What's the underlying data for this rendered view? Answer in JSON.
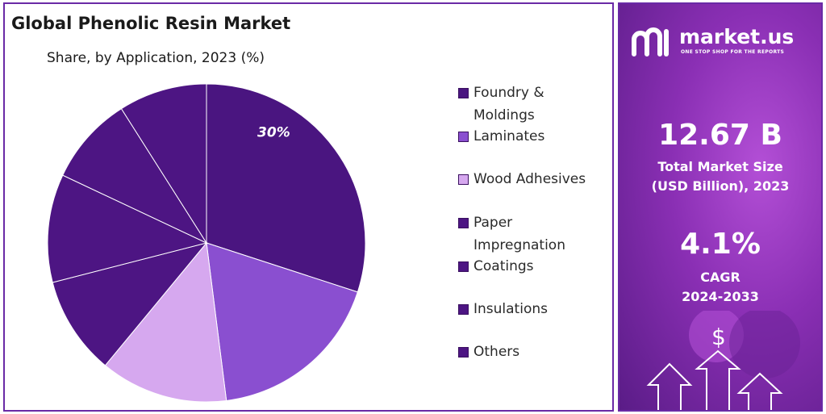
{
  "chart_data": {
    "type": "pie",
    "title": "Global Phenolic Resin Market",
    "subtitle": "Share, by Application, 2023 (%)",
    "categories": [
      "Foundry & Moldings",
      "Laminates",
      "Wood Adhesives",
      "Paper Impregnation",
      "Coatings",
      "Insulations",
      "Others"
    ],
    "values": [
      30,
      18,
      13,
      10,
      11,
      9,
      9
    ],
    "data_labels": [
      "30%",
      "",
      "",
      "",
      "",
      "",
      ""
    ],
    "colors": [
      "#4a1580",
      "#8a4fd0",
      "#d6a8ef",
      "#4d1583",
      "#4d1583",
      "#4d1583",
      "#4d1583"
    ],
    "legend_position": "right"
  },
  "legend": {
    "items": [
      "Foundry &\nMoldings",
      "Laminates",
      "Wood Adhesives",
      "Paper\nImpregnation",
      "Coatings",
      "Insulations",
      "Others"
    ]
  },
  "side_panel": {
    "brand_name": "market.us",
    "brand_tagline": "ONE STOP SHOP FOR THE REPORTS",
    "market_size_value": "12.67 B",
    "market_size_label_line1": "Total Market Size",
    "market_size_label_line2": "(USD Billion), 2023",
    "cagr_value": "4.1%",
    "cagr_label_line1": "CAGR",
    "cagr_label_line2": "2024-2033",
    "icon": "dollar-arrows-icon"
  }
}
